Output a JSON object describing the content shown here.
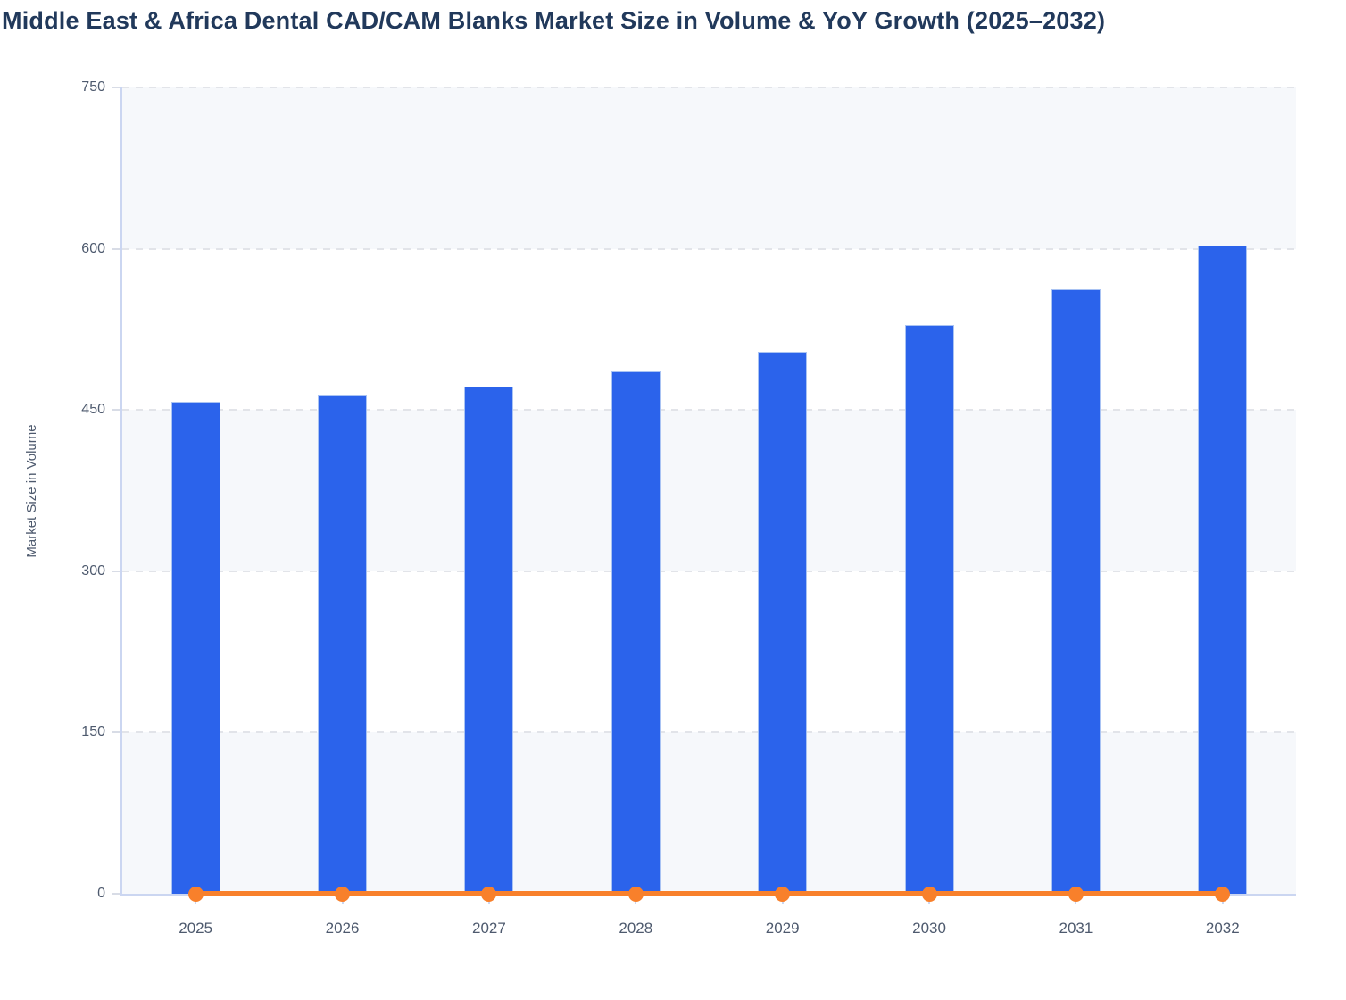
{
  "header": {
    "title": "Middle East & Africa Dental CAD/CAM Blanks Market Size in Volume & YoY Growth (2025–2032)"
  },
  "chart_data": {
    "type": "bar",
    "title": "Middle East & Africa Dental CAD/CAM Blanks Market Size in Volume & YoY Growth (2025–2032)",
    "categories": [
      "2025",
      "2026",
      "2027",
      "2028",
      "2029",
      "2030",
      "2031",
      "2032"
    ],
    "series": [
      {
        "name": "Market Size in Volume",
        "type": "column",
        "color": "#2B63EB",
        "values": [
          458,
          464,
          472,
          486,
          504,
          529,
          562,
          603
        ]
      },
      {
        "name": "YoY Growth",
        "type": "line",
        "color": "#F8802B",
        "values": [
          0,
          0,
          0,
          0,
          0,
          0,
          0,
          0
        ],
        "note": "rendered flat along the x-axis baseline; no value labels shown"
      }
    ],
    "xlabel": "",
    "ylabel": "Market Size in Volume",
    "ylim": [
      0,
      750
    ],
    "yticks": [
      0,
      150,
      300,
      450,
      600,
      750
    ],
    "grid": "horizontal-dashed",
    "alternate_bands": true,
    "legend": "none"
  },
  "colors": {
    "bar": "#2B63EB",
    "bar_border": "#A9C3F3",
    "line": "#F8802B",
    "band": "#F6F8FB",
    "gridline": "#E2E4E9",
    "axis_line": "#CBD6F1",
    "label_text": "#4E5A6E",
    "title_text": "#21395B"
  }
}
